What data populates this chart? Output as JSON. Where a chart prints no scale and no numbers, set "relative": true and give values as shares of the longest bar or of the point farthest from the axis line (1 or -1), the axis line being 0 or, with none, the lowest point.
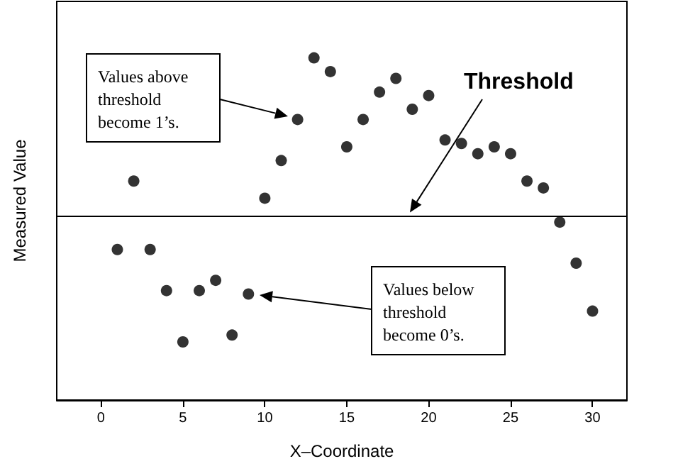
{
  "chart_data": {
    "type": "scatter",
    "xlabel": "X–Coordinate",
    "ylabel": "Measured Value",
    "relative": true,
    "xlim": [
      -2.7,
      32.1
    ],
    "xticks": [
      0,
      5,
      10,
      15,
      20,
      25,
      30
    ],
    "marker": "circle",
    "grid": false,
    "x": [
      1,
      2,
      3,
      4,
      5,
      6,
      7,
      8,
      9,
      10,
      11,
      12,
      13,
      14,
      15,
      16,
      17,
      18,
      19,
      20,
      21,
      22,
      23,
      24,
      25,
      26,
      27,
      28,
      29,
      30
    ],
    "series": [
      {
        "color": "#000000",
        "values": [
          0.44,
          0.64,
          0.44,
          0.32,
          0.17,
          0.32,
          0.35,
          0.19,
          0.31,
          0.59,
          0.7,
          0.82,
          1,
          0.96,
          0.74,
          0.82,
          0.9,
          0.94,
          0.85,
          0.89,
          0.76,
          0.75,
          0.72,
          0.74,
          0.72,
          0.64,
          0.62,
          0.52,
          0.4,
          0.26
        ]
      }
    ],
    "ref_lines": [
      {
        "axis": "y",
        "value": 0.54,
        "label": "Threshold",
        "color": "#000000",
        "line_style": "solid"
      }
    ],
    "annotations": [
      "Values above threshold become 1’s.",
      "Values below threshold become 0’s."
    ]
  }
}
